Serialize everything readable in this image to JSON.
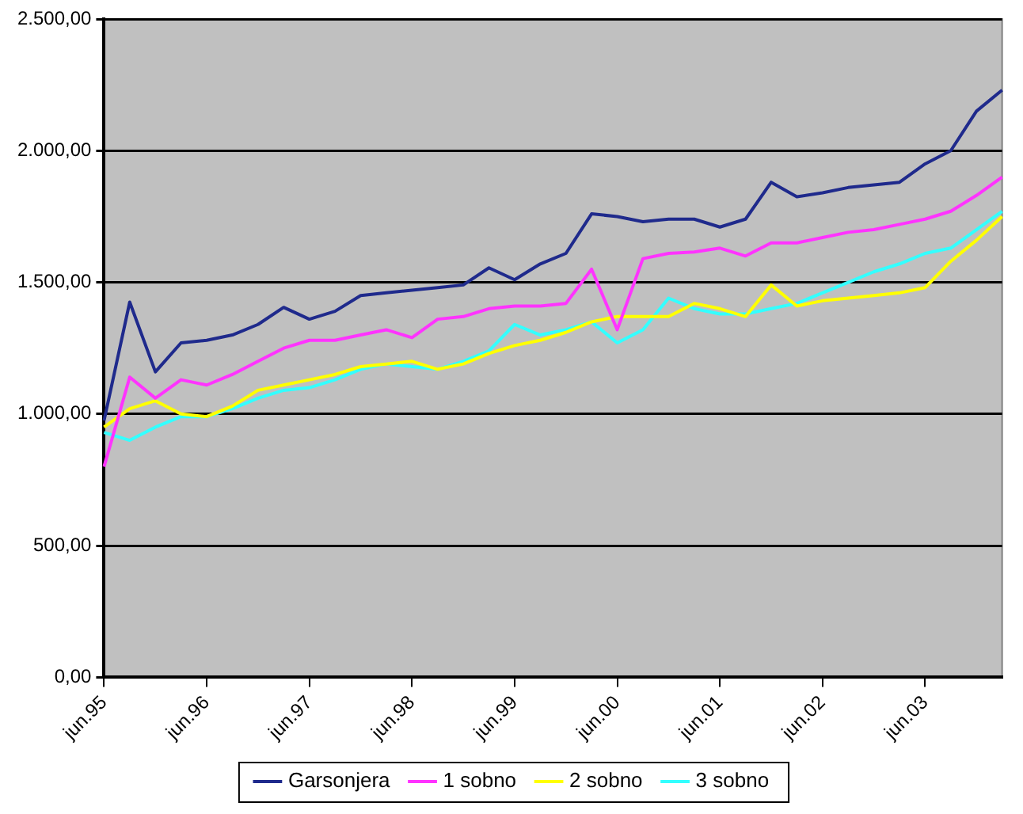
{
  "chart_data": {
    "type": "line",
    "categories": [
      "jun.95",
      null,
      null,
      null,
      "jun.96",
      null,
      null,
      null,
      "jun.97",
      null,
      null,
      null,
      "jun.98",
      null,
      null,
      null,
      "jun.99",
      null,
      null,
      null,
      "jun.00",
      null,
      null,
      null,
      "jun.01",
      null,
      null,
      null,
      "jun.02",
      null,
      null,
      null,
      "jun.03",
      null,
      null,
      null
    ],
    "series": [
      {
        "name": "Garsonjera",
        "color": "#1f2a8c",
        "values": [
          975,
          1425,
          1160,
          1270,
          1280,
          1300,
          1340,
          1405,
          1360,
          1390,
          1450,
          1460,
          1470,
          1480,
          1490,
          1555,
          1510,
          1570,
          1610,
          1760,
          1750,
          1730,
          1740,
          1740,
          1710,
          1740,
          1880,
          1825,
          1840,
          1860,
          1870,
          1880,
          1950,
          2000,
          2150,
          2230
        ]
      },
      {
        "name": "1 sobno",
        "color": "#ff33ff",
        "values": [
          800,
          1140,
          1060,
          1130,
          1110,
          1150,
          1200,
          1250,
          1280,
          1280,
          1300,
          1320,
          1290,
          1360,
          1370,
          1400,
          1410,
          1410,
          1420,
          1550,
          1320,
          1590,
          1610,
          1615,
          1630,
          1600,
          1650,
          1650,
          1670,
          1690,
          1700,
          1720,
          1740,
          1770,
          1830,
          1900
        ]
      },
      {
        "name": "2 sobno",
        "color": "#ffff00",
        "values": [
          950,
          1020,
          1050,
          1000,
          990,
          1030,
          1090,
          1110,
          1130,
          1150,
          1180,
          1190,
          1200,
          1170,
          1190,
          1230,
          1260,
          1280,
          1310,
          1350,
          1370,
          1370,
          1370,
          1420,
          1400,
          1370,
          1490,
          1410,
          1430,
          1440,
          1450,
          1460,
          1480,
          1580,
          1660,
          1750
        ]
      },
      {
        "name": "3 sobno",
        "color": "#33ffff",
        "values": [
          930,
          900,
          950,
          990,
          990,
          1020,
          1060,
          1090,
          1100,
          1130,
          1170,
          1190,
          1180,
          1170,
          1200,
          1240,
          1340,
          1300,
          1320,
          1350,
          1270,
          1320,
          1440,
          1400,
          1380,
          1380,
          1400,
          1420,
          1460,
          1500,
          1540,
          1570,
          1610,
          1630,
          1700,
          1770
        ]
      }
    ],
    "ylim": [
      0,
      2500
    ],
    "yticks": [
      {
        "value": 0,
        "label": "0,00"
      },
      {
        "value": 500,
        "label": "500,00"
      },
      {
        "value": 1000,
        "label": "1.000,00"
      },
      {
        "value": 1500,
        "label": "1.500,00"
      },
      {
        "value": 2000,
        "label": "2.000,00"
      },
      {
        "value": 2500,
        "label": "2.500,00"
      }
    ],
    "grid": "y",
    "legend": "bottom",
    "marker": "none",
    "line_style": "solid"
  }
}
